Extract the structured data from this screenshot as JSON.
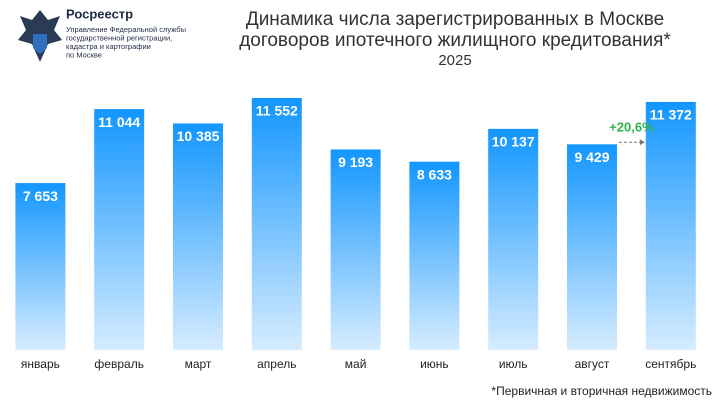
{
  "chart_data": {
    "type": "bar",
    "title": [
      "Динамика числа зарегистрированных в Москве",
      "договоров ипотечного жилищного кредитования*"
    ],
    "subtitle": "2025",
    "logo_title": "Росреестр",
    "logo_subtitle": [
      "Управление Федеральной службы",
      "государственной регистрации,",
      "кадастра и картографии",
      "по Москве"
    ],
    "categories": [
      "январь",
      "февраль",
      "март",
      "апрель",
      "май",
      "июнь",
      "июль",
      "август",
      "сентябрь"
    ],
    "values": [
      7653,
      11044,
      10385,
      11552,
      9193,
      8633,
      10137,
      9429,
      11372
    ],
    "value_labels": [
      "7 653",
      "11 044",
      "10 385",
      "11 552",
      "9 193",
      "8 633",
      "10 137",
      "9 429",
      "11 372"
    ],
    "color": "#1296ff",
    "annotation": "+20,6%",
    "note": "*Первичная и вторичная недвижимость"
  }
}
